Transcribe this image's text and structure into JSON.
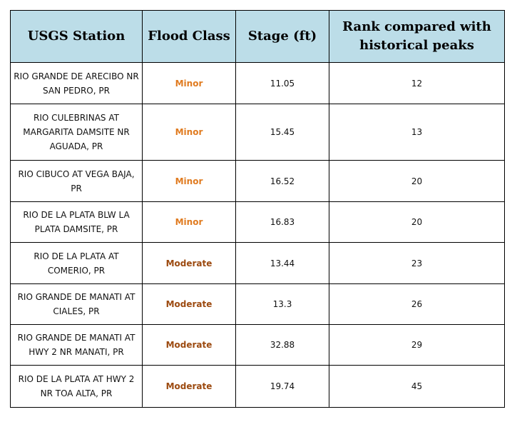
{
  "headers": {
    "station": "USGS Station",
    "flood_class": "Flood Class",
    "stage": "Stage (ft)",
    "rank": "Rank compared with historical peaks"
  },
  "colors": {
    "header_bg": "#bcdde8",
    "minor": "#e07b20",
    "moderate": "#9c4a10"
  },
  "rows": [
    {
      "station": "RIO GRANDE DE ARECIBO NR SAN PEDRO, PR",
      "flood_class": "Minor",
      "stage": "11.05",
      "rank": "12"
    },
    {
      "station": "RIO CULEBRINAS AT MARGARITA DAMSITE NR AGUADA, PR",
      "flood_class": "Minor",
      "stage": "15.45",
      "rank": "13"
    },
    {
      "station": "RIO CIBUCO AT VEGA BAJA, PR",
      "flood_class": "Minor",
      "stage": "16.52",
      "rank": "20"
    },
    {
      "station": "RIO DE LA PLATA BLW LA PLATA DAMSITE, PR",
      "flood_class": "Minor",
      "stage": "16.83",
      "rank": "20"
    },
    {
      "station": "RIO DE LA PLATA AT COMERIO, PR",
      "flood_class": "Moderate",
      "stage": "13.44",
      "rank": "23"
    },
    {
      "station": "RIO GRANDE DE MANATI AT CIALES, PR",
      "flood_class": "Moderate",
      "stage": "13.3",
      "rank": "26"
    },
    {
      "station": "RIO GRANDE DE MANATI AT HWY 2 NR MANATI, PR",
      "flood_class": "Moderate",
      "stage": "32.88",
      "rank": "29"
    },
    {
      "station": "RIO DE LA PLATA AT HWY 2 NR TOA ALTA, PR",
      "flood_class": "Moderate",
      "stage": "19.74",
      "rank": "45"
    }
  ]
}
